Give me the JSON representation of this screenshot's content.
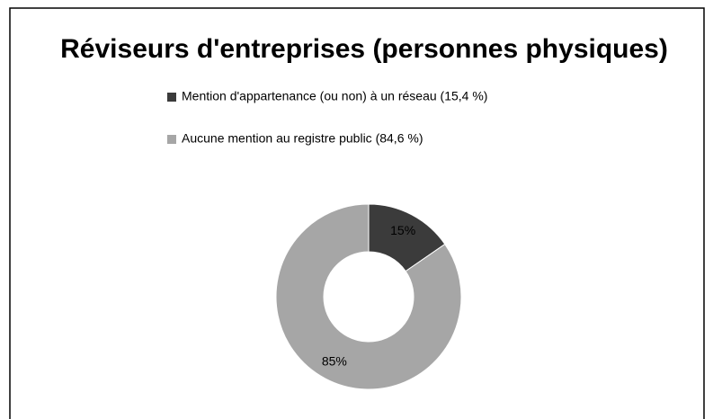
{
  "chart_data": {
    "type": "doughnut",
    "title": "Réviseurs d'entreprises (personnes physiques)",
    "categories": [
      "Mention d'appartenance (ou non) à un réseau (15,4 %)",
      "Aucune mention au registre public (84,6 %)"
    ],
    "values": [
      15.4,
      84.6
    ],
    "value_labels": [
      "15%",
      "85%"
    ],
    "colors": [
      "#3b3b3b",
      "#a6a6a6"
    ],
    "legend": "top"
  }
}
